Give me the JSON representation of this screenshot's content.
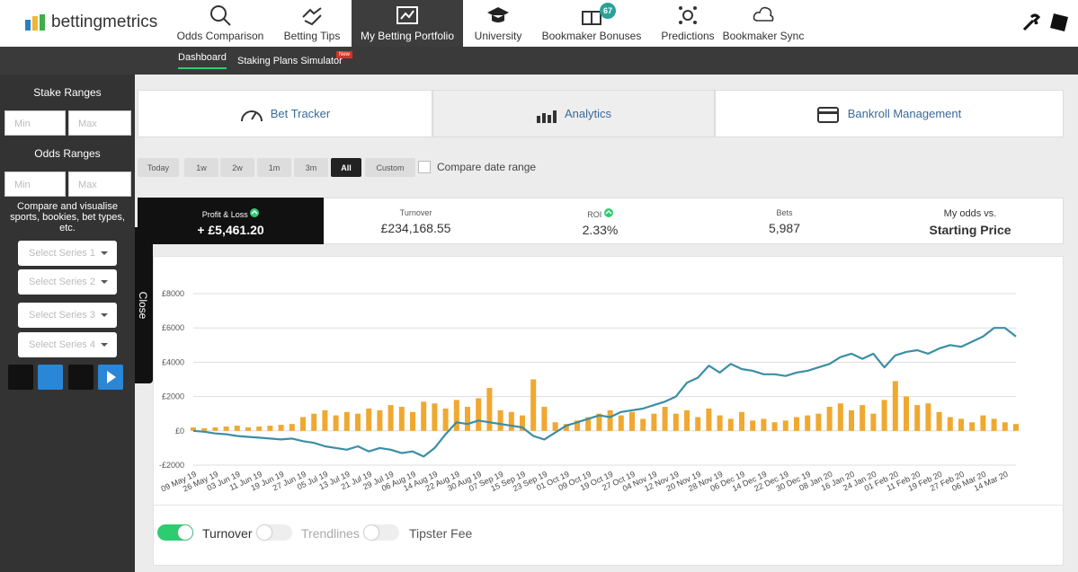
{
  "header": {
    "logo": "bettingmetrics",
    "nav": [
      "Odds Comparison",
      "Betting Tips",
      "My Betting Portfolio",
      "University",
      "Bookmaker Bonuses",
      "Predictions",
      "Bookmaker Sync"
    ],
    "bonus_badge": "67",
    "subnav": [
      "Dashboard",
      "Staking Plans Simulator"
    ],
    "new_badge": "New"
  },
  "sidebar": {
    "stake_title": "Stake Ranges",
    "stake_min": "Min",
    "stake_max": "Max",
    "odds_title": "Odds Ranges",
    "odds_min": "Min",
    "odds_max": "Max",
    "compare_text": "Compare and visualise sports, bookies, bet types, etc.",
    "series_selects": [
      "Select Series 1",
      "Select Series 2",
      "Select Series 3",
      "Select Series 4"
    ],
    "close": "Close"
  },
  "tabs": [
    "Bet Tracker",
    "Analytics",
    "Bankroll Management"
  ],
  "ranges": [
    "Today",
    "1w",
    "2w",
    "1m",
    "3m",
    "All",
    "Custom"
  ],
  "compare_range": "Compare date range",
  "stats": [
    {
      "label": "Profit & Loss",
      "value": "+ £5,461.20"
    },
    {
      "label": "Turnover",
      "value": "£234,168.55"
    },
    {
      "label": "ROI",
      "value": "2.33%"
    },
    {
      "label": "Bets",
      "value": "5,987"
    },
    {
      "label": "My odds vs.",
      "value": "Starting Price"
    }
  ],
  "chart_data": {
    "type": "combo",
    "categories": [
      "09 May 19",
      null,
      "26 May 19",
      null,
      "03 Jun 19",
      null,
      "11 Jun 19",
      null,
      "19 Jun 19",
      null,
      "27 Jun 19",
      null,
      "05 Jul 19",
      null,
      "13 Jul 19",
      null,
      "21 Jul 19",
      null,
      "29 Jul 19",
      null,
      "06 Aug 19",
      null,
      "14 Aug 19",
      null,
      "22 Aug 19",
      null,
      "30 Aug 19",
      null,
      "07 Sep 19",
      null,
      "15 Sep 19",
      null,
      "23 Sep 19",
      null,
      "01 Oct 19",
      null,
      "09 Oct 19",
      null,
      "19 Oct 19",
      null,
      "27 Oct 19",
      null,
      "04 Nov 19",
      null,
      "12 Nov 19",
      null,
      "20 Nov 19",
      null,
      "28 Nov 19",
      null,
      "06 Dec 19",
      null,
      "14 Dec 19",
      null,
      "22 Dec 19",
      null,
      "30 Dec 19",
      null,
      "08 Jan 20",
      null,
      "16 Jan 20",
      null,
      "24 Jan 20",
      null,
      "01 Feb 20",
      null,
      "11 Feb 20",
      null,
      "19 Feb 20",
      null,
      "27 Feb 20",
      null,
      "06 Mar 20",
      null,
      "14 Mar 20",
      null
    ],
    "series": [
      {
        "name": "Turnover",
        "type": "bar",
        "color": "#f0a830",
        "values": [
          200,
          150,
          200,
          250,
          300,
          200,
          250,
          300,
          350,
          400,
          800,
          1000,
          1200,
          900,
          1100,
          1000,
          1300,
          1200,
          1500,
          1400,
          1100,
          1700,
          1600,
          1300,
          1800,
          1400,
          1900,
          2500,
          1200,
          1100,
          900,
          3000,
          1400,
          500,
          400,
          600,
          800,
          1000,
          1200,
          900,
          1100,
          700,
          1000,
          1400,
          1000,
          1200,
          800,
          1300,
          900,
          700,
          1100,
          600,
          700,
          500,
          600,
          800,
          900,
          1000,
          1400,
          1600,
          1200,
          1500,
          1000,
          1800,
          2900,
          2000,
          1500,
          1600,
          1100,
          800,
          700,
          500,
          900,
          700,
          500,
          400
        ]
      },
      {
        "name": "Profit & Loss",
        "type": "line",
        "color": "#3b8ea5",
        "values": [
          0,
          -50,
          -150,
          -200,
          -300,
          -350,
          -400,
          -450,
          -500,
          -450,
          -600,
          -700,
          -900,
          -1000,
          -1100,
          -900,
          -1200,
          -1000,
          -1100,
          -1300,
          -1200,
          -1500,
          -1000,
          -200,
          500,
          400,
          600,
          500,
          400,
          300,
          200,
          -300,
          -500,
          -100,
          300,
          500,
          700,
          900,
          800,
          1100,
          1200,
          1300,
          1500,
          1700,
          2000,
          2800,
          3100,
          3800,
          3400,
          3900,
          3600,
          3500,
          3300,
          3300,
          3200,
          3400,
          3500,
          3700,
          3900,
          4300,
          4500,
          4200,
          4500,
          3700,
          4400,
          4600,
          4700,
          4500,
          4800,
          5000,
          4900,
          5200,
          5500,
          6000,
          6000,
          5500
        ]
      }
    ],
    "ylim": [
      -2000,
      8000
    ],
    "yticks": [
      {
        "value": -2000,
        "label": "-£2000"
      },
      {
        "value": 0,
        "label": "£0"
      },
      {
        "value": 2000,
        "label": "£2000"
      },
      {
        "value": 4000,
        "label": "£4000"
      },
      {
        "value": 6000,
        "label": "£6000"
      },
      {
        "value": 8000,
        "label": "£8000"
      }
    ],
    "grid": true
  },
  "toggles": [
    {
      "label": "Turnover",
      "on": true
    },
    {
      "label": "Trendlines",
      "on": false
    },
    {
      "label": "Tipster Fee",
      "on": false
    }
  ]
}
